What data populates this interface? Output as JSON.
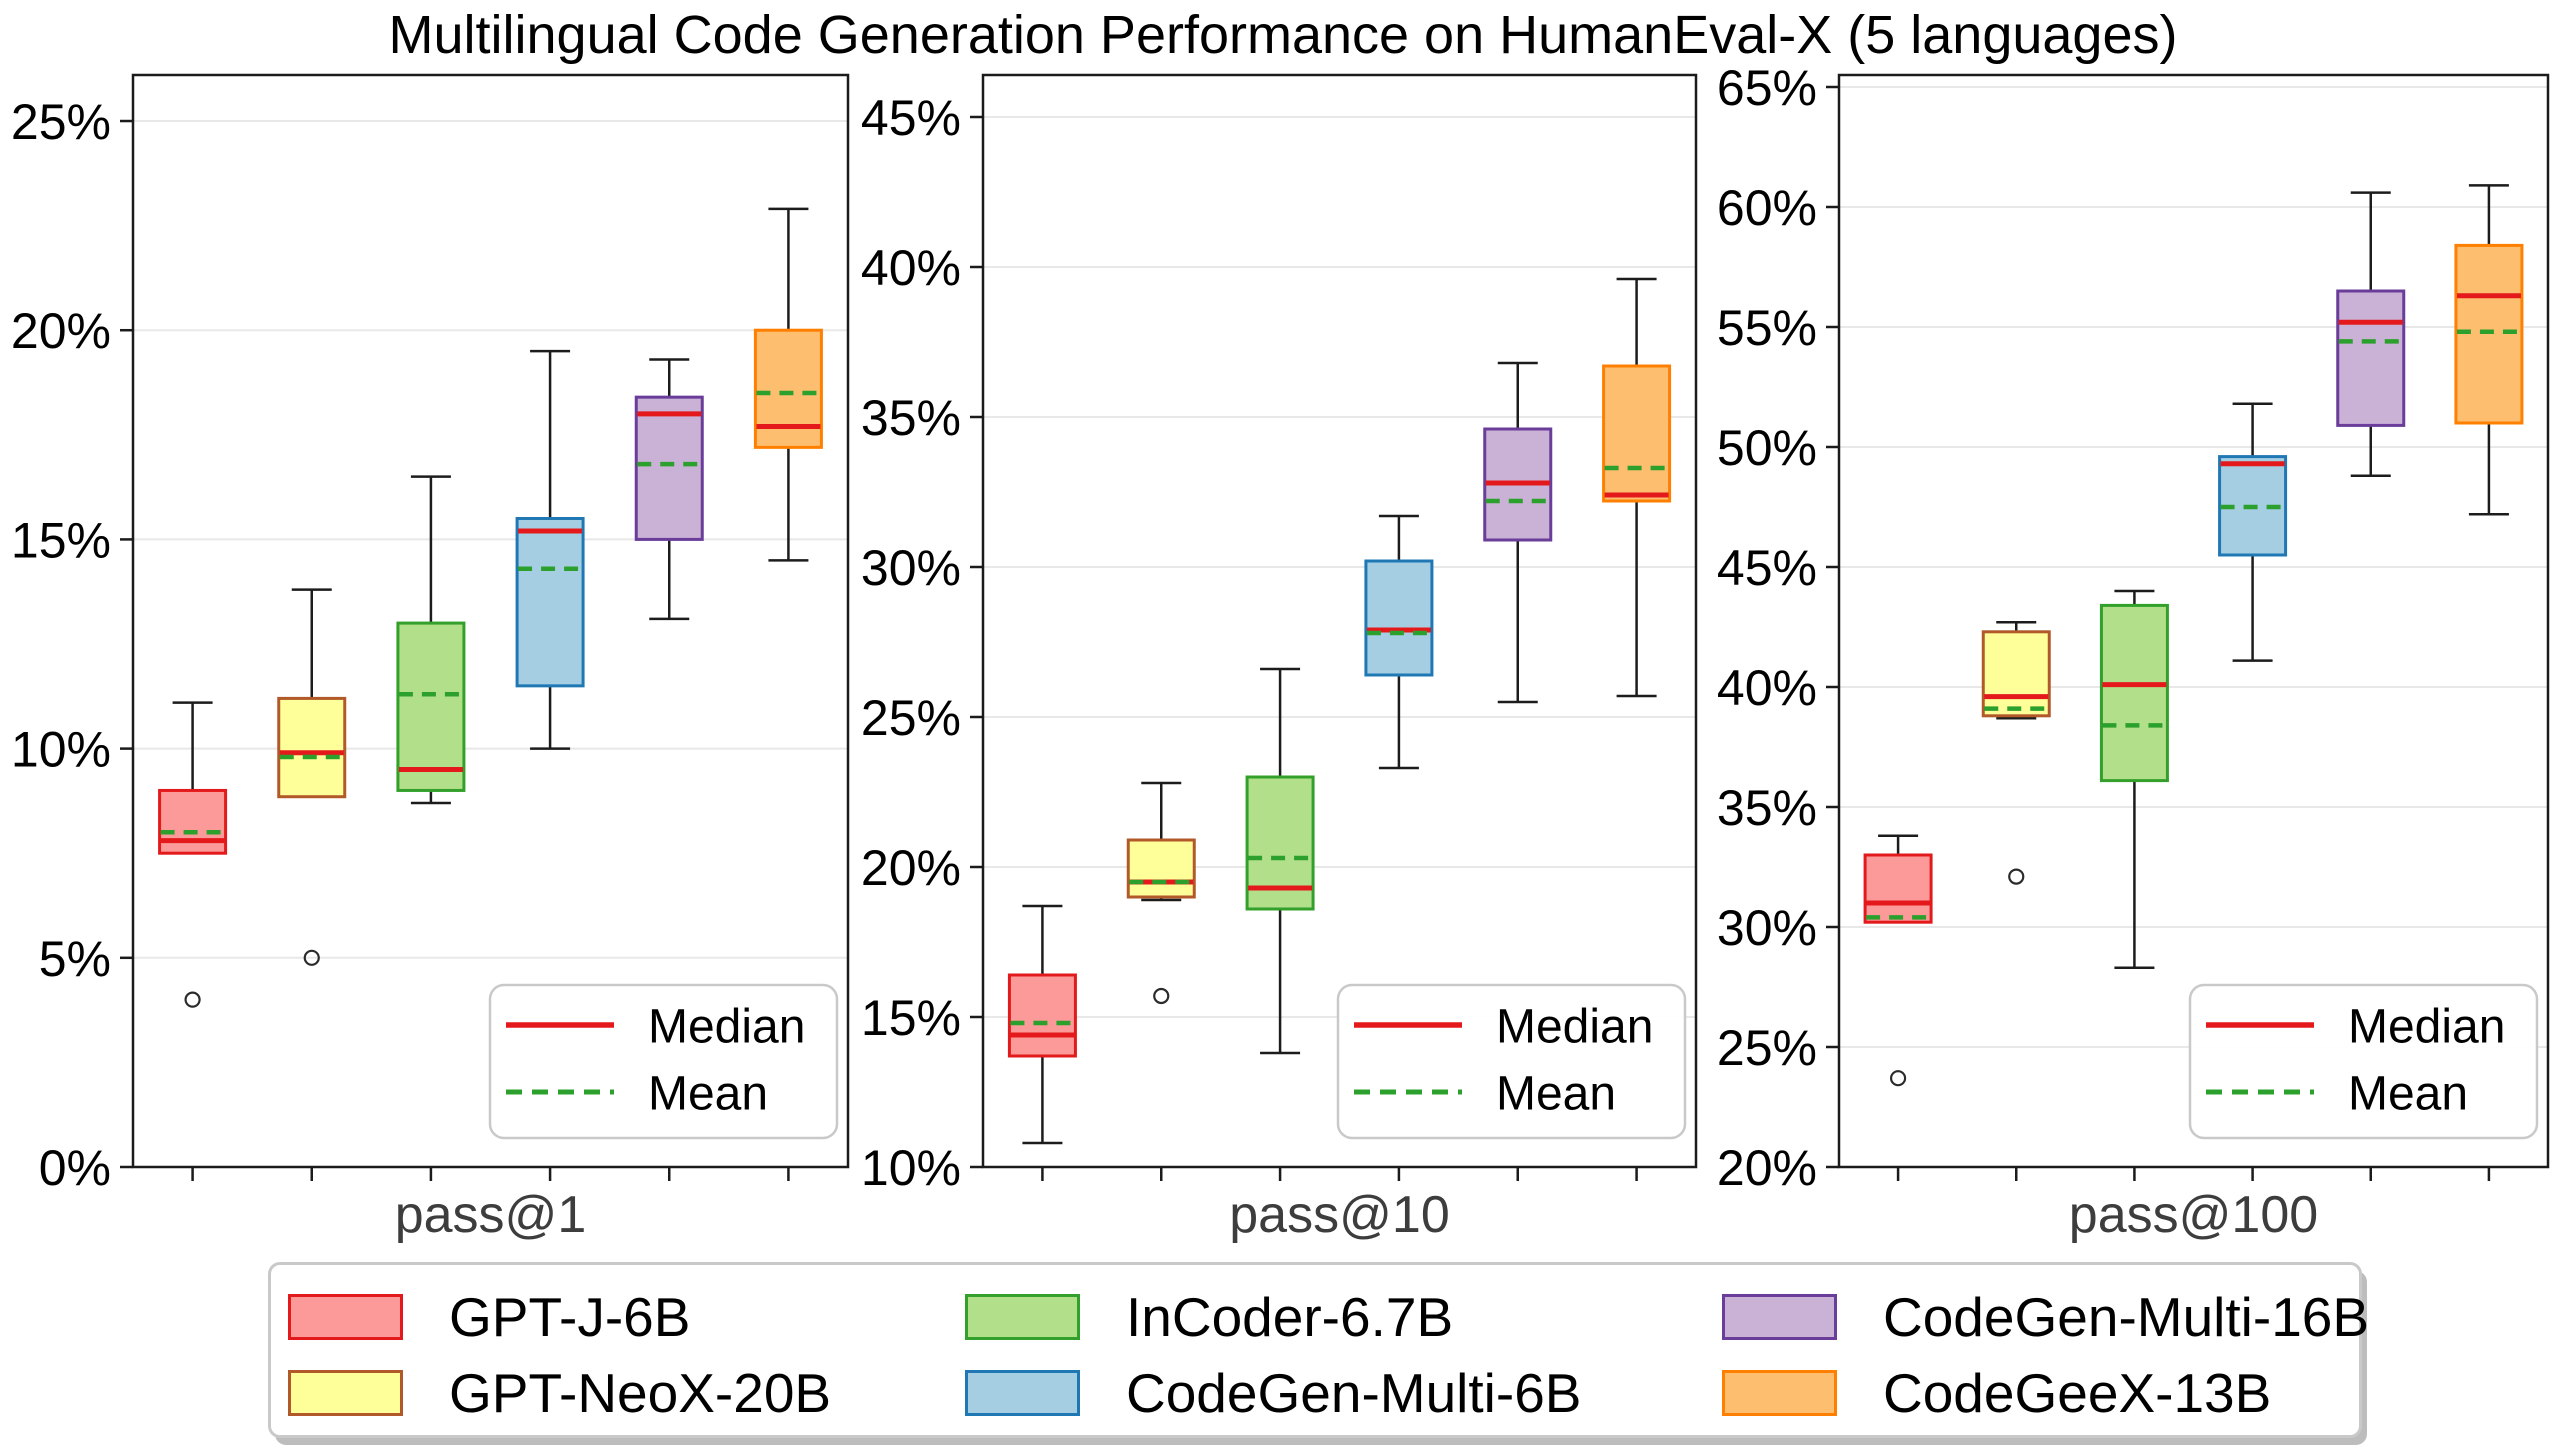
{
  "title": "Multilingual Code Generation Performance on HumanEval-X (5 languages)",
  "colors": {
    "background": "#ffffff",
    "grid": "#e8e8e8",
    "spine": "#1b1b1b",
    "whisker": "#1c1c1c",
    "outlier_edge": "#2b2b2b",
    "median_line": "#e4191c",
    "mean_line": "#2ca02c",
    "tick_label": "#000000",
    "xlabel_text": "#3d3d3d",
    "legend_border": "#c9c9c9"
  },
  "models": [
    {
      "name": "GPT-J-6B",
      "fill": "#fb9a99",
      "edge": "#e31a1c"
    },
    {
      "name": "GPT-NeoX-20B",
      "fill": "#ffff99",
      "edge": "#b15928"
    },
    {
      "name": "InCoder-6.7B",
      "fill": "#b2df8a",
      "edge": "#33a02c"
    },
    {
      "name": "CodeGen-Multi-6B",
      "fill": "#a6cee3",
      "edge": "#1f78b4"
    },
    {
      "name": "CodeGen-Multi-16B",
      "fill": "#cab2d6",
      "edge": "#6a3d9a"
    },
    {
      "name": "CodeGeeX-13B",
      "fill": "#fdbf6f",
      "edge": "#ff7f00"
    }
  ],
  "inner_legend": {
    "median_label": "Median",
    "mean_label": "Mean"
  },
  "chart_data": {
    "type": "boxplot",
    "grid": "horizontal",
    "legend_position": "bottom",
    "panels": [
      {
        "xlabel": "pass@1",
        "ylim": [
          0,
          26.1
        ],
        "yticks": [
          {
            "value": 0,
            "label": "0%"
          },
          {
            "value": 5,
            "label": "5%"
          },
          {
            "value": 10,
            "label": "10%"
          },
          {
            "value": 15,
            "label": "15%"
          },
          {
            "value": 20,
            "label": "20%"
          },
          {
            "value": 25,
            "label": "25%"
          }
        ],
        "boxes": [
          {
            "model": "GPT-J-6B",
            "whislo": 7.6,
            "q1": 7.5,
            "med": 7.8,
            "mean": 8.0,
            "q3": 9.0,
            "whishi": 11.1,
            "outliers": [
              4.0
            ]
          },
          {
            "model": "GPT-NeoX-20B",
            "whislo": 8.9,
            "q1": 8.85,
            "med": 9.9,
            "mean": 9.8,
            "q3": 11.2,
            "whishi": 13.8,
            "outliers": [
              5.0
            ]
          },
          {
            "model": "InCoder-6.7B",
            "whislo": 8.7,
            "q1": 9.0,
            "med": 9.5,
            "mean": 11.3,
            "q3": 13.0,
            "whishi": 16.5,
            "outliers": []
          },
          {
            "model": "CodeGen-Multi-6B",
            "whislo": 10.0,
            "q1": 11.5,
            "med": 15.2,
            "mean": 14.3,
            "q3": 15.5,
            "whishi": 19.5,
            "outliers": []
          },
          {
            "model": "CodeGen-Multi-16B",
            "whislo": 13.1,
            "q1": 15.0,
            "med": 18.0,
            "mean": 16.8,
            "q3": 18.4,
            "whishi": 19.3,
            "outliers": []
          },
          {
            "model": "CodeGeeX-13B",
            "whislo": 14.5,
            "q1": 17.2,
            "med": 17.7,
            "mean": 18.5,
            "q3": 20.0,
            "whishi": 22.9,
            "outliers": []
          }
        ]
      },
      {
        "xlabel": "pass@10",
        "ylim": [
          10,
          46.4
        ],
        "yticks": [
          {
            "value": 10,
            "label": "10%"
          },
          {
            "value": 15,
            "label": "15%"
          },
          {
            "value": 20,
            "label": "20%"
          },
          {
            "value": 25,
            "label": "25%"
          },
          {
            "value": 30,
            "label": "30%"
          },
          {
            "value": 35,
            "label": "35%"
          },
          {
            "value": 40,
            "label": "40%"
          },
          {
            "value": 45,
            "label": "45%"
          }
        ],
        "boxes": [
          {
            "model": "GPT-J-6B",
            "whislo": 10.8,
            "q1": 13.7,
            "med": 14.4,
            "mean": 14.8,
            "q3": 16.4,
            "whishi": 18.7,
            "outliers": []
          },
          {
            "model": "GPT-NeoX-20B",
            "whislo": 18.9,
            "q1": 19.0,
            "med": 19.5,
            "mean": 19.5,
            "q3": 20.9,
            "whishi": 22.8,
            "outliers": [
              15.7
            ]
          },
          {
            "model": "InCoder-6.7B",
            "whislo": 13.8,
            "q1": 18.6,
            "med": 19.3,
            "mean": 20.3,
            "q3": 23.0,
            "whishi": 26.6,
            "outliers": []
          },
          {
            "model": "CodeGen-Multi-6B",
            "whislo": 23.3,
            "q1": 26.4,
            "med": 27.9,
            "mean": 27.8,
            "q3": 30.2,
            "whishi": 31.7,
            "outliers": []
          },
          {
            "model": "CodeGen-Multi-16B",
            "whislo": 25.5,
            "q1": 30.9,
            "med": 32.8,
            "mean": 32.2,
            "q3": 34.6,
            "whishi": 36.8,
            "outliers": []
          },
          {
            "model": "CodeGeeX-13B",
            "whislo": 25.7,
            "q1": 32.2,
            "med": 32.4,
            "mean": 33.3,
            "q3": 36.7,
            "whishi": 39.6,
            "outliers": []
          }
        ]
      },
      {
        "xlabel": "pass@100",
        "ylim": [
          20,
          65.5
        ],
        "yticks": [
          {
            "value": 20,
            "label": "20%"
          },
          {
            "value": 25,
            "label": "25%"
          },
          {
            "value": 30,
            "label": "30%"
          },
          {
            "value": 35,
            "label": "35%"
          },
          {
            "value": 40,
            "label": "40%"
          },
          {
            "value": 45,
            "label": "45%"
          },
          {
            "value": 50,
            "label": "50%"
          },
          {
            "value": 55,
            "label": "55%"
          },
          {
            "value": 60,
            "label": "60%"
          },
          {
            "value": 65,
            "label": "65%"
          }
        ],
        "boxes": [
          {
            "model": "GPT-J-6B",
            "whislo": 30.3,
            "q1": 30.2,
            "med": 31.0,
            "mean": 30.4,
            "q3": 33.0,
            "whishi": 33.8,
            "outliers": [
              23.7
            ]
          },
          {
            "model": "GPT-NeoX-20B",
            "whislo": 38.7,
            "q1": 38.8,
            "med": 39.6,
            "mean": 39.1,
            "q3": 42.3,
            "whishi": 42.7,
            "outliers": [
              32.1
            ]
          },
          {
            "model": "InCoder-6.7B",
            "whislo": 28.3,
            "q1": 36.1,
            "med": 40.1,
            "mean": 38.4,
            "q3": 43.4,
            "whishi": 44.0,
            "outliers": []
          },
          {
            "model": "CodeGen-Multi-6B",
            "whislo": 41.1,
            "q1": 45.5,
            "med": 49.3,
            "mean": 47.5,
            "q3": 49.6,
            "whishi": 51.8,
            "outliers": []
          },
          {
            "model": "CodeGen-Multi-16B",
            "whislo": 48.8,
            "q1": 50.9,
            "med": 55.2,
            "mean": 54.4,
            "q3": 56.5,
            "whishi": 60.6,
            "outliers": []
          },
          {
            "model": "CodeGeeX-13B",
            "whislo": 47.2,
            "q1": 51.0,
            "med": 56.3,
            "mean": 54.8,
            "q3": 58.4,
            "whishi": 60.9,
            "outliers": []
          }
        ]
      }
    ]
  }
}
